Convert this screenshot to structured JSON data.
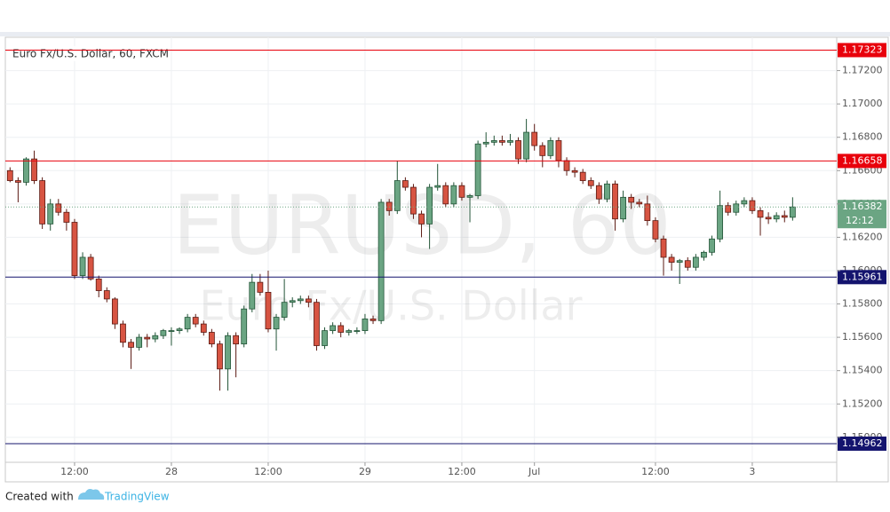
{
  "chart_data": {
    "type": "candlestick",
    "title": "Euro Fx/U.S. Dollar, 60, FXCM",
    "watermark": {
      "symbol": "EURUSD, 60",
      "description": "Euro Fx/U.S. Dollar"
    },
    "categories": [
      null,
      null,
      null,
      null,
      null,
      null,
      null,
      null,
      "12:00",
      null,
      null,
      null,
      null,
      null,
      null,
      null,
      null,
      null,
      null,
      null,
      "28",
      null,
      null,
      null,
      null,
      null,
      null,
      null,
      null,
      null,
      null,
      null,
      "12:00",
      null,
      null,
      null,
      null,
      null,
      null,
      null,
      null,
      null,
      null,
      null,
      "29",
      null,
      null,
      null,
      null,
      null,
      null,
      null,
      null,
      null,
      null,
      null,
      "12:00",
      null,
      null,
      null,
      null,
      null,
      null,
      null,
      null,
      "Jul",
      null,
      null,
      null,
      null,
      null,
      null,
      null,
      null,
      null,
      null,
      null,
      null,
      null,
      null,
      "12:00",
      null,
      null,
      null,
      null,
      null,
      null,
      null,
      null,
      null,
      null,
      null,
      "3",
      null,
      null,
      null,
      null,
      null
    ],
    "open": [
      1.166,
      1.1654,
      1.1653,
      1.1667,
      1.1654,
      1.1628,
      1.164,
      1.1635,
      1.1629,
      1.1597,
      1.1608,
      1.1595,
      1.1588,
      1.1583,
      1.1568,
      1.1557,
      1.1554,
      1.156,
      1.1559,
      1.1561,
      1.1564,
      1.1564,
      1.1565,
      1.1572,
      1.1568,
      1.1563,
      1.1556,
      1.1541,
      1.1561,
      1.1556,
      1.1577,
      1.1593,
      1.1587,
      1.1565,
      1.1572,
      1.1581,
      1.1582,
      1.1583,
      1.1581,
      1.1555,
      1.1564,
      1.1567,
      1.1563,
      1.1564,
      1.1564,
      1.1571,
      1.157,
      1.1641,
      1.1636,
      1.1654,
      1.165,
      1.1634,
      1.1628,
      1.165,
      1.1651,
      1.164,
      1.1651,
      1.1644,
      1.1645,
      1.1676,
      1.1677,
      1.1678,
      1.1677,
      1.1678,
      1.1667,
      1.1683,
      1.1675,
      1.1669,
      1.1678,
      1.1666,
      1.166,
      1.1659,
      1.1654,
      1.1651,
      1.1643,
      1.1652,
      1.1631,
      1.1644,
      1.1641,
      1.164,
      1.163,
      1.1619,
      1.1608,
      1.1605,
      1.1606,
      1.1602,
      1.1608,
      1.1611,
      1.1619,
      1.1639,
      1.1635,
      1.164,
      1.1642,
      1.1636,
      1.1632,
      1.1631,
      1.1633,
      1.1632
    ],
    "high": [
      1.1662,
      1.1656,
      1.1668,
      1.1672,
      1.1656,
      1.1643,
      1.1643,
      1.1637,
      1.1631,
      1.1611,
      1.161,
      1.1597,
      1.159,
      1.1584,
      1.157,
      1.1559,
      1.1562,
      1.1562,
      1.1563,
      1.1565,
      1.1566,
      1.1566,
      1.1574,
      1.1574,
      1.157,
      1.1565,
      1.1558,
      1.1563,
      1.1563,
      1.1579,
      1.1598,
      1.1598,
      1.16,
      1.1574,
      1.1595,
      1.1584,
      1.1585,
      1.1585,
      1.1583,
      1.1566,
      1.1569,
      1.1569,
      1.1565,
      1.1566,
      1.1574,
      1.1573,
      1.1643,
      1.1643,
      1.1666,
      1.1656,
      1.1652,
      1.1636,
      1.1652,
      1.1664,
      1.1653,
      1.1653,
      1.1653,
      1.1646,
      1.1678,
      1.1683,
      1.1681,
      1.1681,
      1.1682,
      1.168,
      1.1691,
      1.1688,
      1.1677,
      1.168,
      1.168,
      1.1668,
      1.1662,
      1.1661,
      1.1656,
      1.1653,
      1.1654,
      1.1654,
      1.1648,
      1.1646,
      1.1643,
      1.1645,
      1.1632,
      1.1621,
      1.161,
      1.1607,
      1.1608,
      1.161,
      1.1612,
      1.1621,
      1.1648,
      1.1641,
      1.1642,
      1.1644,
      1.1644,
      1.1638,
      1.1635,
      1.1635,
      1.1636,
      1.1644
    ],
    "low": [
      1.1653,
      1.1641,
      1.1651,
      1.1652,
      1.1625,
      1.1624,
      1.1633,
      1.1624,
      1.1595,
      1.1595,
      1.1594,
      1.1584,
      1.1581,
      1.1565,
      1.1554,
      1.1541,
      1.1552,
      1.1554,
      1.1557,
      1.1559,
      1.1555,
      1.1562,
      1.1563,
      1.1566,
      1.1561,
      1.1554,
      1.1528,
      1.1528,
      1.1536,
      1.1554,
      1.1575,
      1.1585,
      1.1563,
      1.1552,
      1.157,
      1.1578,
      1.158,
      1.1578,
      1.1552,
      1.1553,
      1.1562,
      1.156,
      1.1561,
      1.1562,
      1.1562,
      1.1568,
      1.1568,
      1.1633,
      1.1634,
      1.1648,
      1.1631,
      1.162,
      1.1613,
      1.1648,
      1.1638,
      1.1638,
      1.1642,
      1.1629,
      1.1643,
      1.1674,
      1.1675,
      1.1675,
      1.1675,
      1.1664,
      1.1665,
      1.1672,
      1.1662,
      1.1667,
      1.1662,
      1.1657,
      1.1656,
      1.1652,
      1.1649,
      1.164,
      1.1641,
      1.1624,
      1.1629,
      1.1637,
      1.1638,
      1.1627,
      1.1617,
      1.1597,
      1.16,
      1.1592,
      1.16,
      1.16,
      1.1606,
      1.1609,
      1.1617,
      1.1633,
      1.1633,
      1.1638,
      1.1634,
      1.1621,
      1.1628,
      1.1629,
      1.1629,
      1.163
    ],
    "close": [
      1.1654,
      1.1653,
      1.1667,
      1.1654,
      1.1628,
      1.164,
      1.1635,
      1.1629,
      1.1597,
      1.1608,
      1.1595,
      1.1588,
      1.1583,
      1.1568,
      1.1557,
      1.1554,
      1.156,
      1.1559,
      1.1561,
      1.1564,
      1.1564,
      1.1565,
      1.1572,
      1.1568,
      1.1563,
      1.1556,
      1.1541,
      1.1561,
      1.1556,
      1.1577,
      1.1593,
      1.1587,
      1.1565,
      1.1572,
      1.1581,
      1.1582,
      1.1583,
      1.1581,
      1.1555,
      1.1564,
      1.1567,
      1.1563,
      1.1564,
      1.1564,
      1.1571,
      1.157,
      1.1641,
      1.1636,
      1.1654,
      1.165,
      1.1634,
      1.1628,
      1.165,
      1.1651,
      1.164,
      1.1651,
      1.1644,
      1.1645,
      1.1676,
      1.1677,
      1.1678,
      1.1677,
      1.1678,
      1.1667,
      1.1683,
      1.1675,
      1.1669,
      1.1678,
      1.1666,
      1.166,
      1.1659,
      1.1654,
      1.1651,
      1.1643,
      1.1652,
      1.1631,
      1.1644,
      1.1641,
      1.164,
      1.163,
      1.1619,
      1.1608,
      1.1605,
      1.1606,
      1.1602,
      1.1608,
      1.1611,
      1.1619,
      1.1639,
      1.1635,
      1.164,
      1.1642,
      1.1636,
      1.1632,
      1.1631,
      1.1633,
      1.1632,
      1.16382
    ],
    "up_color": "#6ba583",
    "down_color": "#d75442",
    "ylim": [
      1.1485,
      1.174
    ],
    "yticks": [
      {
        "value": 1.15,
        "label": "1.15000"
      },
      {
        "value": 1.152,
        "label": "1.15200"
      },
      {
        "value": 1.154,
        "label": "1.15400"
      },
      {
        "value": 1.156,
        "label": "1.15600"
      },
      {
        "value": 1.158,
        "label": "1.15800"
      },
      {
        "value": 1.16,
        "label": "1.16000"
      },
      {
        "value": 1.162,
        "label": "1.16200"
      },
      {
        "value": 1.164,
        "label": "1.16400"
      },
      {
        "value": 1.166,
        "label": "1.16600"
      },
      {
        "value": 1.168,
        "label": "1.16800"
      },
      {
        "value": 1.17,
        "label": "1.17000"
      },
      {
        "value": 1.172,
        "label": "1.17200"
      }
    ],
    "grid": true,
    "lines": [
      {
        "value": 1.17323,
        "color": "#e8000b"
      },
      {
        "value": 1.16658,
        "color": "#e8000b"
      },
      {
        "value": 1.15961,
        "color": "#14146e"
      },
      {
        "value": 1.14962,
        "color": "#14146e"
      }
    ],
    "last_price": {
      "value": 1.16382,
      "countdown": "12:12",
      "color": "#6ba583"
    }
  },
  "footer": {
    "text": "Created with",
    "brand": "TradingView"
  }
}
